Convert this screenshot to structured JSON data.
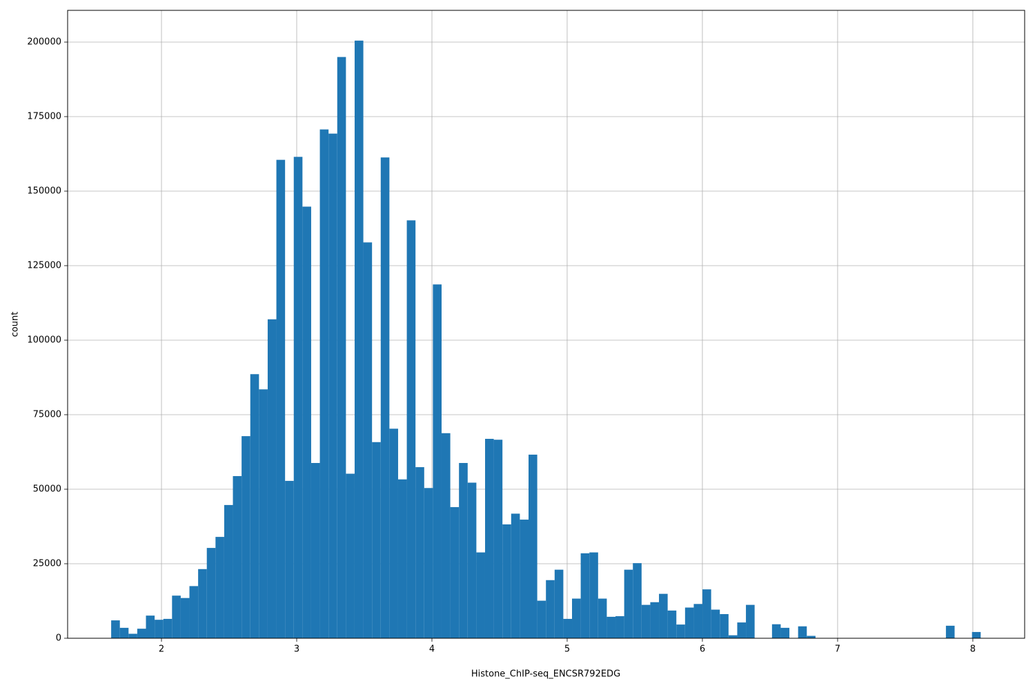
{
  "chart_data": {
    "type": "histogram",
    "x_label": "Histone_ChIP-seq_ENCSR792EDG",
    "y_label": "count",
    "color": "#1f77b4",
    "grid": true,
    "xlim": [
      1.306,
      8.383
    ],
    "ylim": [
      0,
      210650
    ],
    "xticks": [
      2,
      3,
      4,
      5,
      6,
      7,
      8
    ],
    "yticks": [
      0,
      25000,
      50000,
      75000,
      100000,
      125000,
      150000,
      175000,
      200000
    ],
    "bins": [
      1.628,
      1.6923,
      1.7566,
      1.8209,
      1.8852,
      1.9495,
      2.0138,
      2.0781,
      2.1424,
      2.2067,
      2.271,
      2.3353,
      2.3996,
      2.4639,
      2.5282,
      2.5925,
      2.6568,
      2.7211,
      2.7854,
      2.8497,
      2.914,
      2.9783,
      3.0426,
      3.1069,
      3.1712,
      3.2355,
      3.2998,
      3.3641,
      3.4284,
      3.4927,
      3.557,
      3.6213,
      3.6856,
      3.7499,
      3.8142,
      3.8785,
      3.9428,
      4.0071,
      4.0714,
      4.1357,
      4.2,
      4.2643,
      4.3286,
      4.3929,
      4.4572,
      4.5215,
      4.5858,
      4.6501,
      4.7144,
      4.7787,
      4.843,
      4.9073,
      4.9716,
      5.0359,
      5.1002,
      5.1645,
      5.2288,
      5.2931,
      5.3574,
      5.4217,
      5.486,
      5.5503,
      5.6146,
      5.6789,
      5.7432,
      5.8075,
      5.8718,
      5.9361,
      6.0004,
      6.0647,
      6.129,
      6.1933,
      6.2576,
      6.3219,
      6.3862,
      6.4505,
      6.5148,
      6.5791,
      6.6434,
      6.7077,
      6.772,
      6.8363,
      6.9006,
      6.9649,
      7.0292,
      7.0935,
      7.1578,
      7.2221,
      7.2864,
      7.3507,
      7.415,
      7.4793,
      7.5436,
      7.6079,
      7.6722,
      7.7365,
      7.8008,
      7.8651,
      7.9294,
      7.9937,
      8.058
    ],
    "counts": [
      6000,
      3500,
      1500,
      3200,
      7600,
      6200,
      6500,
      14300,
      13500,
      17500,
      23200,
      30300,
      34000,
      44700,
      54400,
      67800,
      88600,
      83500,
      107000,
      160500,
      52800,
      161500,
      144800,
      58800,
      170700,
      169300,
      195000,
      55200,
      200500,
      132800,
      65800,
      161300,
      70300,
      53300,
      140200,
      57400,
      50400,
      118700,
      68800,
      44000,
      58800,
      52200,
      28800,
      66900,
      66600,
      38200,
      41800,
      39800,
      61600,
      12600,
      19500,
      23000,
      6500,
      13300,
      28500,
      28800,
      13300,
      7200,
      7400,
      23000,
      25200,
      11200,
      12100,
      14900,
      9300,
      4600,
      10300,
      11500,
      16400,
      9600,
      8100,
      1000,
      5300,
      11200,
      0,
      0,
      4700,
      3500,
      0,
      4000,
      800,
      0,
      0,
      0,
      0,
      0,
      0,
      0,
      0,
      0,
      0,
      0,
      0,
      0,
      0,
      0,
      4200,
      0,
      0,
      2100
    ]
  }
}
